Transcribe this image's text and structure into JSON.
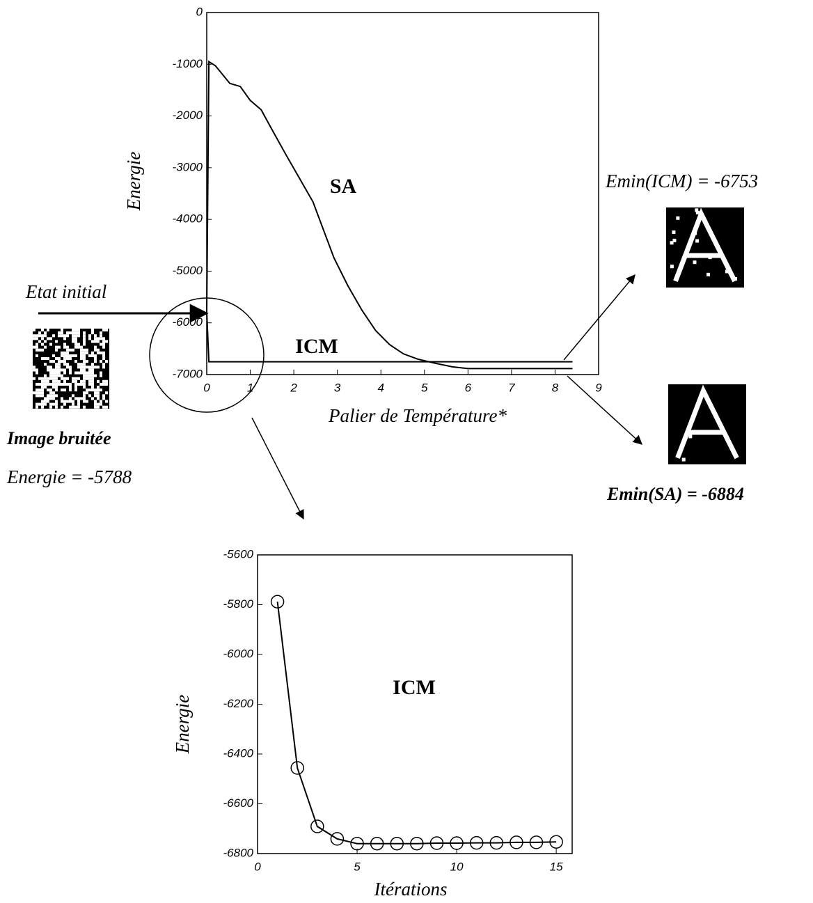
{
  "chart_data": [
    {
      "type": "line",
      "xlabel": "Palier de Température*",
      "ylabel": "Energie",
      "xlim": [
        0,
        9
      ],
      "ylim": [
        -7000,
        0
      ],
      "xticks": [
        0,
        1,
        2,
        3,
        4,
        5,
        6,
        7,
        8,
        9
      ],
      "yticks": [
        0,
        -1000,
        -2000,
        -3000,
        -4000,
        -5000,
        -6000,
        -7000
      ],
      "series": [
        {
          "name": "SA",
          "color": "#000000",
          "x": [
            0,
            0.05,
            0.2,
            0.53,
            0.77,
            1.0,
            1.25,
            1.49,
            1.8,
            2.12,
            2.44,
            2.68,
            2.92,
            3.24,
            3.56,
            3.88,
            4.2,
            4.52,
            4.84,
            5.24,
            5.64,
            6.0,
            8.4
          ],
          "values": [
            -5788,
            -950,
            -1030,
            -1370,
            -1430,
            -1700,
            -1880,
            -2250,
            -2720,
            -3190,
            -3660,
            -4200,
            -4740,
            -5280,
            -5750,
            -6150,
            -6420,
            -6600,
            -6700,
            -6780,
            -6850,
            -6884,
            -6884
          ]
        },
        {
          "name": "ICM",
          "color": "#000000",
          "x": [
            0,
            0.05,
            8.4
          ],
          "values": [
            -5788,
            -6753,
            -6753
          ]
        }
      ]
    },
    {
      "type": "line",
      "xlabel": "Itérations",
      "ylabel": "Energie",
      "xlim": [
        0,
        15.8
      ],
      "ylim": [
        -6800,
        -5600
      ],
      "xticks": [
        0,
        5,
        10,
        15
      ],
      "yticks": [
        -5600,
        -5800,
        -6000,
        -6200,
        -6400,
        -6600,
        -6800
      ],
      "markers": true,
      "series": [
        {
          "name": "ICM",
          "color": "#000000",
          "x": [
            1,
            2,
            3,
            4,
            5,
            6,
            7,
            8,
            9,
            10,
            11,
            12,
            13,
            14,
            15
          ],
          "values": [
            -5788,
            -6456,
            -6691,
            -6741,
            -6760,
            -6760,
            -6760,
            -6760,
            -6758,
            -6758,
            -6757,
            -6757,
            -6755,
            -6755,
            -6753
          ]
        }
      ]
    }
  ],
  "annotations": {
    "initial": "Etat initial",
    "noisy_image": "Image bruitée",
    "noisy_energy": "Energie = -5788",
    "emin_icm": "Emin(ICM) = -6753",
    "emin_sa": "Emin(SA) = -6884"
  }
}
